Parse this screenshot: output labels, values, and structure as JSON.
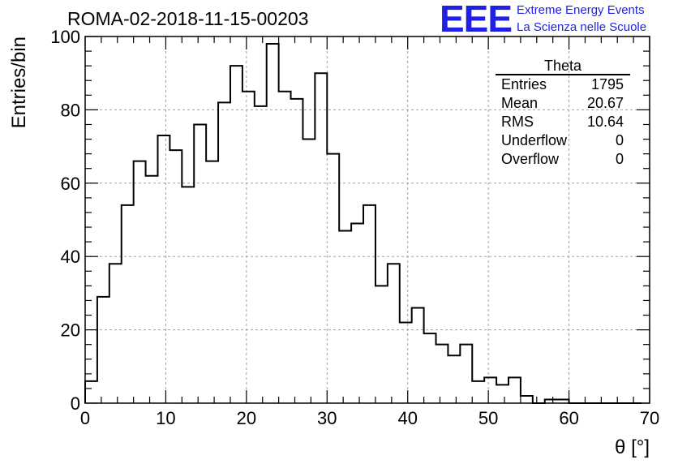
{
  "chart_title": "ROMA-02-2018-11-15-00203",
  "logo": {
    "text": "EEE",
    "line1": "Extreme Energy Events",
    "line2": "La Scienza nelle Scuole",
    "color": "#1f1fe6"
  },
  "stats_box": {
    "name": "Theta",
    "rows": [
      {
        "label": "Entries",
        "value": "1795"
      },
      {
        "label": "Mean",
        "value": "20.67"
      },
      {
        "label": "RMS",
        "value": "10.64"
      },
      {
        "label": "Underflow",
        "value": "0"
      },
      {
        "label": "Overflow",
        "value": "0"
      }
    ]
  },
  "chart_data": {
    "type": "histogram",
    "title": "ROMA-02-2018-11-15-00203",
    "xlabel": "θ [°]",
    "ylabel": "Entries/bin",
    "xlim": [
      0,
      70
    ],
    "ylim": [
      0,
      100
    ],
    "bin_width": 1.5,
    "x_start": 0,
    "xticks": [
      0,
      10,
      20,
      30,
      40,
      50,
      60,
      70
    ],
    "yticks": [
      0,
      20,
      40,
      60,
      80,
      100
    ],
    "grid": true,
    "values": [
      6,
      29,
      38,
      54,
      66,
      62,
      73,
      69,
      59,
      76,
      66,
      82,
      92,
      85,
      81,
      98,
      85,
      83,
      72,
      90,
      68,
      47,
      49,
      54,
      32,
      38,
      22,
      26,
      19,
      16,
      13,
      16,
      6,
      7,
      5,
      7,
      2,
      0,
      1,
      1,
      0,
      0,
      0,
      0,
      0,
      0
    ],
    "line_color": "#000000"
  }
}
